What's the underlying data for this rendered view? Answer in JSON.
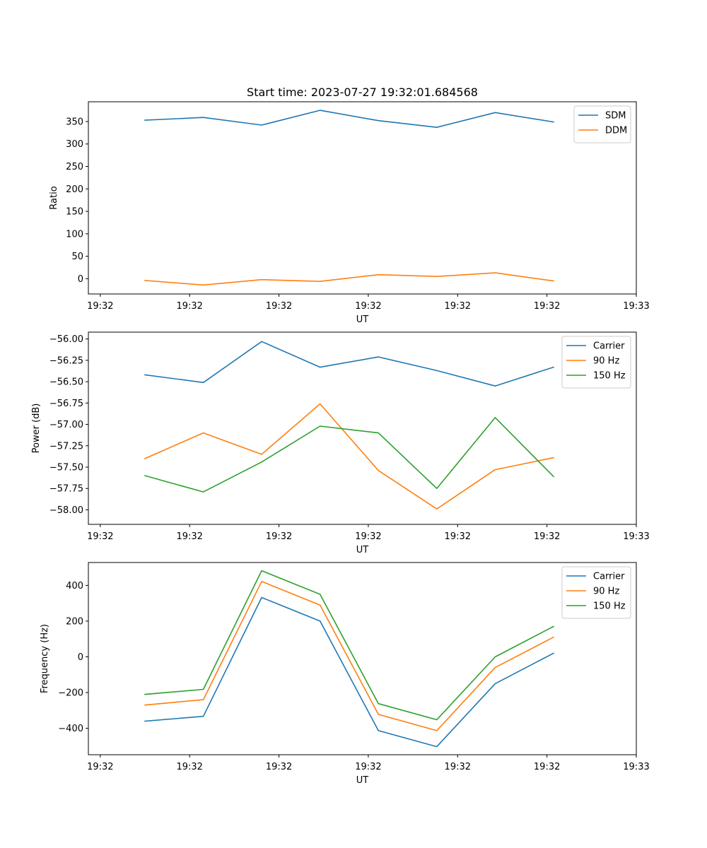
{
  "chart_data": [
    {
      "type": "line",
      "title": "Start time: 2023-07-27 19:32:01.684568",
      "xlabel": "UT",
      "ylabel": "Ratio",
      "xlim": [
        -0.2,
        9.0
      ],
      "ylim": [
        -34,
        394
      ],
      "x_ticks": [
        0,
        1.5,
        3,
        4.5,
        6,
        7.5,
        9
      ],
      "x_tick_labels": [
        "19:32",
        "19:32",
        "19:32",
        "19:32",
        "19:32",
        "19:32",
        "19:33"
      ],
      "y_ticks": [
        0,
        50,
        100,
        150,
        200,
        250,
        300,
        350
      ],
      "y_tick_labels": [
        "0",
        "50",
        "100",
        "150",
        "200",
        "250",
        "300",
        "350"
      ],
      "legend_position": "top-right",
      "x": [
        0.75,
        1.73,
        2.71,
        3.69,
        4.67,
        5.65,
        6.63,
        7.61
      ],
      "series": [
        {
          "name": "SDM",
          "color": "#1f77b4",
          "values": [
            353,
            359,
            342,
            375,
            352,
            337,
            370,
            349
          ]
        },
        {
          "name": "DDM",
          "color": "#ff7f0e",
          "values": [
            -4,
            -14,
            -2,
            -6,
            9,
            5,
            13,
            -5
          ]
        }
      ]
    },
    {
      "type": "line",
      "title": "",
      "xlabel": "UT",
      "ylabel": "Power (dB)",
      "xlim": [
        -0.2,
        9.0
      ],
      "ylim": [
        -58.17,
        -55.92
      ],
      "x_ticks": [
        0,
        1.5,
        3,
        4.5,
        6,
        7.5,
        9
      ],
      "x_tick_labels": [
        "19:32",
        "19:32",
        "19:32",
        "19:32",
        "19:32",
        "19:32",
        "19:33"
      ],
      "y_ticks": [
        -58.0,
        -57.75,
        -57.5,
        -57.25,
        -57.0,
        -56.75,
        -56.5,
        -56.25,
        -56.0
      ],
      "y_tick_labels": [
        "−58.00",
        "−57.75",
        "−57.50",
        "−57.25",
        "−57.00",
        "−56.75",
        "−56.50",
        "−56.25",
        "−56.00"
      ],
      "legend_position": "top-right",
      "x": [
        0.75,
        1.73,
        2.71,
        3.69,
        4.67,
        5.65,
        6.63,
        7.61
      ],
      "series": [
        {
          "name": "Carrier",
          "color": "#1f77b4",
          "values": [
            -56.42,
            -56.51,
            -56.03,
            -56.33,
            -56.21,
            -56.37,
            -56.55,
            -56.33
          ]
        },
        {
          "name": "90 Hz",
          "color": "#ff7f0e",
          "values": [
            -57.4,
            -57.1,
            -57.35,
            -56.76,
            -57.54,
            -57.99,
            -57.53,
            -57.39
          ]
        },
        {
          "name": "150 Hz",
          "color": "#2ca02c",
          "values": [
            -57.6,
            -57.79,
            -57.44,
            -57.02,
            -57.1,
            -57.75,
            -56.92,
            -57.61
          ]
        }
      ]
    },
    {
      "type": "line",
      "title": "",
      "xlabel": "UT",
      "ylabel": "Frequency (Hz)",
      "xlim": [
        -0.2,
        9.0
      ],
      "ylim": [
        -548,
        528
      ],
      "x_ticks": [
        0,
        1.5,
        3,
        4.5,
        6,
        7.5,
        9
      ],
      "x_tick_labels": [
        "19:32",
        "19:32",
        "19:32",
        "19:32",
        "19:32",
        "19:32",
        "19:33"
      ],
      "y_ticks": [
        -400,
        -200,
        0,
        200,
        400
      ],
      "y_tick_labels": [
        "−400",
        "−200",
        "0",
        "200",
        "400"
      ],
      "legend_position": "top-right",
      "x": [
        0.75,
        1.73,
        2.71,
        3.69,
        4.67,
        5.65,
        6.63,
        7.61
      ],
      "series": [
        {
          "name": "Carrier",
          "color": "#1f77b4",
          "values": [
            -360,
            -333,
            332,
            200,
            -413,
            -503,
            -150,
            20
          ]
        },
        {
          "name": "90 Hz",
          "color": "#ff7f0e",
          "values": [
            -270,
            -240,
            422,
            290,
            -322,
            -413,
            -60,
            110
          ]
        },
        {
          "name": "150 Hz",
          "color": "#2ca02c",
          "values": [
            -210,
            -182,
            482,
            350,
            -262,
            -352,
            0,
            170
          ]
        }
      ]
    }
  ]
}
